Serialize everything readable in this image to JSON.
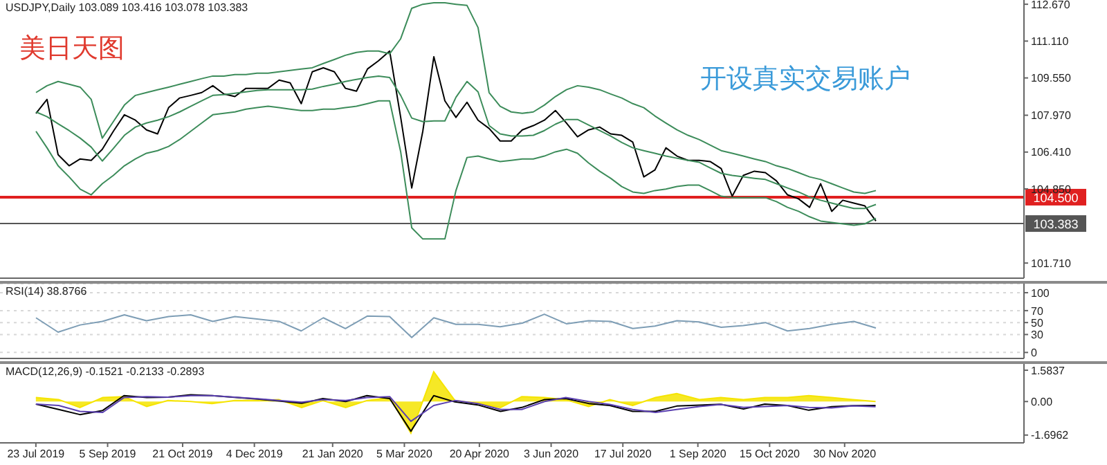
{
  "chart_data": [
    {
      "type": "line",
      "title": "USDJPY,Daily 103.089 103.416 103.078 103.383",
      "annotations": [
        "美日天图",
        "开设真实交易账户"
      ],
      "categories": [
        null,
        null,
        null,
        null,
        null,
        null,
        null,
        null,
        null,
        null,
        null,
        null,
        null,
        null,
        null,
        null,
        null,
        null,
        null,
        null,
        null,
        null,
        null,
        null,
        null,
        null,
        null,
        null,
        null,
        null,
        null,
        null,
        null,
        null,
        null,
        null,
        null,
        null,
        null,
        null,
        null,
        null,
        null,
        null,
        null,
        null,
        null,
        null,
        null,
        null,
        null,
        null,
        null,
        null,
        null,
        null,
        null,
        null,
        null,
        null,
        null,
        null,
        null,
        null,
        null,
        null,
        null,
        null,
        null,
        null,
        null,
        null,
        null,
        null,
        null,
        null,
        null
      ],
      "ylim": [
        101.07,
        112.85
      ],
      "yticks": [
        {
          "value": 101.71,
          "label": "101.710"
        },
        {
          "value": 104.85,
          "label": "104.850"
        },
        {
          "value": 106.41,
          "label": "106.410"
        },
        {
          "value": 107.97,
          "label": "107.970"
        },
        {
          "value": 109.55,
          "label": "109.550"
        },
        {
          "value": 111.11,
          "label": "111.110"
        },
        {
          "value": 112.67,
          "label": "112.670"
        }
      ],
      "tick_labels": "y",
      "ref_lines": [
        {
          "axis": "y",
          "value": 104.5,
          "label": "104.500",
          "color": "#e02020"
        },
        {
          "axis": "y",
          "value": 103.383,
          "label": "103.383",
          "color": "#555555"
        }
      ],
      "series": [
        {
          "color": "#000000",
          "values": [
            108.05,
            108.64,
            106.3,
            105.83,
            106.12,
            106.06,
            106.53,
            107.29,
            107.99,
            107.76,
            107.35,
            107.18,
            108.29,
            108.7,
            108.81,
            108.93,
            109.22,
            108.87,
            108.76,
            109.11,
            109.11,
            109.11,
            109.46,
            109.34,
            108.46,
            109.81,
            109.98,
            109.81,
            109.11,
            108.99,
            109.93,
            110.28,
            110.69,
            107.88,
            104.89,
            107.29,
            110.45,
            108.58,
            107.88,
            108.52,
            107.76,
            107.41,
            106.88,
            106.88,
            107.35,
            107.53,
            107.76,
            108.17,
            107.64,
            107.06,
            107.35,
            107.47,
            107.18,
            107.12,
            106.83,
            105.36,
            105.65,
            106.59,
            106.24,
            106.06,
            106.06,
            106.01,
            105.71,
            104.54,
            105.42,
            105.6,
            105.54,
            105.19,
            104.6,
            104.43,
            104.07,
            105.07,
            103.9,
            104.37,
            104.25,
            104.13,
            103.49
          ]
        },
        {
          "color": "#3c8c5a",
          "values": [
            108.93,
            109.22,
            109.4,
            109.28,
            109.16,
            108.64,
            107.0,
            107.7,
            108.4,
            108.81,
            108.93,
            109.05,
            109.16,
            109.28,
            109.4,
            109.52,
            109.63,
            109.63,
            109.69,
            109.69,
            109.75,
            109.75,
            109.81,
            109.87,
            109.93,
            109.98,
            110.16,
            110.33,
            110.51,
            110.63,
            110.69,
            110.69,
            110.57,
            111.21,
            112.5,
            112.67,
            112.73,
            112.73,
            112.67,
            112.62,
            111.68,
            108.93,
            108.35,
            108.11,
            108.05,
            108.11,
            108.4,
            108.76,
            109.05,
            109.22,
            109.16,
            109.05,
            108.87,
            108.7,
            108.46,
            108.29,
            107.94,
            107.64,
            107.35,
            107.12,
            106.94,
            106.71,
            106.47,
            106.36,
            106.24,
            106.12,
            106.01,
            105.83,
            105.71,
            105.54,
            105.36,
            105.25,
            105.07,
            104.89,
            104.72,
            104.66,
            104.78
          ]
        },
        {
          "color": "#3c8c5a",
          "values": [
            108.11,
            107.91,
            107.61,
            107.32,
            107.0,
            106.62,
            106.03,
            106.56,
            107.12,
            107.47,
            107.64,
            107.76,
            107.91,
            108.11,
            108.35,
            108.58,
            108.81,
            108.84,
            108.9,
            108.96,
            109.02,
            109.05,
            109.05,
            109.05,
            109.05,
            109.08,
            109.19,
            109.28,
            109.4,
            109.49,
            109.57,
            109.63,
            109.57,
            108.81,
            107.85,
            107.7,
            107.73,
            107.73,
            108.73,
            109.4,
            108.96,
            107.53,
            107.18,
            107.09,
            107.09,
            107.12,
            107.32,
            107.59,
            107.79,
            107.79,
            107.56,
            107.32,
            107.09,
            106.82,
            106.59,
            106.47,
            106.36,
            106.24,
            106.15,
            106.06,
            105.98,
            105.74,
            105.51,
            105.42,
            105.36,
            105.3,
            105.25,
            105.07,
            104.89,
            104.72,
            104.51,
            104.37,
            104.25,
            104.13,
            104.02,
            104.02,
            104.19
          ]
        },
        {
          "color": "#3c8c5a",
          "values": [
            107.29,
            106.59,
            105.83,
            105.36,
            104.84,
            104.6,
            105.07,
            105.42,
            105.83,
            106.12,
            106.36,
            106.47,
            106.65,
            106.94,
            107.29,
            107.64,
            107.99,
            108.05,
            108.11,
            108.23,
            108.29,
            108.35,
            108.29,
            108.23,
            108.17,
            108.17,
            108.23,
            108.23,
            108.29,
            108.35,
            108.46,
            108.58,
            108.58,
            106.42,
            103.2,
            102.73,
            102.73,
            102.73,
            104.78,
            106.18,
            106.24,
            106.12,
            106.01,
            106.06,
            106.12,
            106.12,
            106.24,
            106.42,
            106.53,
            106.36,
            105.95,
            105.6,
            105.3,
            104.95,
            104.72,
            104.66,
            104.78,
            104.84,
            104.95,
            105.01,
            105.01,
            104.78,
            104.54,
            104.48,
            104.48,
            104.48,
            104.48,
            104.31,
            104.07,
            103.9,
            103.67,
            103.49,
            103.43,
            103.37,
            103.31,
            103.37,
            103.61
          ]
        }
      ]
    },
    {
      "type": "line",
      "title": "RSI(14) 38.8766",
      "categories": [
        null,
        null,
        null,
        null,
        null,
        null,
        null,
        null,
        null,
        null,
        null,
        null,
        null,
        null,
        null,
        null,
        null,
        null,
        null,
        null,
        null,
        null,
        null,
        null,
        null,
        null,
        null,
        null,
        null,
        null,
        null,
        null,
        null,
        null,
        null,
        null,
        null,
        null,
        null
      ],
      "ylim": [
        -10,
        115
      ],
      "yticks": [
        0,
        30,
        50,
        70,
        100
      ],
      "tick_labels": "y",
      "grid": "y",
      "series": [
        {
          "color": "#7d9db5",
          "values": [
            58,
            34,
            46,
            52,
            63,
            53,
            60,
            63,
            52,
            60,
            56,
            52,
            36,
            58,
            40,
            61,
            60,
            25,
            58,
            47,
            47,
            43,
            49,
            64,
            48,
            53,
            52,
            40,
            44,
            53,
            51,
            42,
            45,
            50,
            36,
            40,
            47,
            52,
            41
          ]
        }
      ]
    },
    {
      "type": "line",
      "title": "MACD(12,26,9) -0.1521 -0.2133 -0.2893",
      "xlim": [
        "2019-07-01",
        "2021-03-20"
      ],
      "xticks": [
        {
          "value": "2019-07-23",
          "label": "23 Jul 2019"
        },
        {
          "value": "2019-09-05",
          "label": "5 Sep 2019"
        },
        {
          "value": "2019-10-21",
          "label": "21 Oct 2019"
        },
        {
          "value": "2019-12-04",
          "label": "4 Dec 2019"
        },
        {
          "value": "2020-01-21",
          "label": "21 Jan 2020"
        },
        {
          "value": "2020-03-05",
          "label": "5 Mar 2020"
        },
        {
          "value": "2020-04-20",
          "label": "20 Apr 2020"
        },
        {
          "value": "2020-06-03",
          "label": "3 Jun 2020"
        },
        {
          "value": "2020-07-17",
          "label": "17 Jul 2020"
        },
        {
          "value": "2020-09-01",
          "label": "1 Sep 2020"
        },
        {
          "value": "2020-10-15",
          "label": "15 Oct 2020"
        },
        {
          "value": "2020-11-30",
          "label": "30 Nov 2020"
        }
      ],
      "x": [
        "2019-07-23",
        "2019-08-06",
        "2019-08-19",
        "2019-09-02",
        "2019-09-15",
        "2019-09-29",
        "2019-10-12",
        "2019-10-26",
        "2019-11-08",
        "2019-11-22",
        "2019-12-06",
        "2019-12-19",
        "2020-01-02",
        "2020-01-15",
        "2020-01-29",
        "2020-02-11",
        "2020-02-25",
        "2020-03-09",
        "2020-03-23",
        "2020-04-05",
        "2020-04-19",
        "2020-05-03",
        "2020-05-16",
        "2020-05-30",
        "2020-06-12",
        "2020-06-26",
        "2020-07-09",
        "2020-07-23",
        "2020-08-06",
        "2020-08-19",
        "2020-09-02",
        "2020-09-15",
        "2020-09-29",
        "2020-10-12",
        "2020-10-26",
        "2020-11-08",
        "2020-11-22",
        "2020-12-05",
        "2020-12-19"
      ],
      "ylim": [
        -2.09,
        1.9
      ],
      "yticks": [
        -1.6962,
        {
          "value": 0,
          "label": "0.00"
        },
        1.5837
      ],
      "series": [
        {
          "type": "area",
          "color": "#f5e400",
          "values": [
            0.2,
            0.1,
            -0.3,
            0.2,
            0.25,
            -0.25,
            0.05,
            0.0,
            -0.1,
            0.05,
            0.05,
            0.1,
            -0.3,
            0.05,
            -0.3,
            0.05,
            0.2,
            -1.6,
            1.5,
            0.05,
            -0.1,
            -0.3,
            0.25,
            0.2,
            0.1,
            -0.25,
            0.1,
            -0.2,
            0.2,
            0.4,
            0.1,
            0.2,
            0.1,
            0.2,
            0.2,
            0.3,
            0.2,
            0.1,
            0.0
          ]
        },
        {
          "color": "#000000",
          "values": [
            -0.13,
            -0.4,
            -0.66,
            -0.45,
            0.3,
            0.2,
            0.22,
            0.34,
            0.3,
            0.21,
            0.12,
            0.03,
            -0.09,
            0.15,
            0.0,
            0.3,
            0.15,
            -1.5,
            0.3,
            -0.02,
            -0.17,
            -0.5,
            -0.3,
            0.1,
            0.15,
            -0.1,
            -0.2,
            -0.5,
            -0.5,
            -0.23,
            -0.18,
            -0.14,
            -0.38,
            -0.13,
            -0.2,
            -0.44,
            -0.26,
            -0.21,
            -0.2
          ]
        },
        {
          "color": "#5a3fb0",
          "values": [
            -0.13,
            -0.2,
            -0.5,
            -0.55,
            0.2,
            0.25,
            0.22,
            0.3,
            0.3,
            0.22,
            0.14,
            0.05,
            -0.03,
            0.1,
            0.05,
            0.2,
            0.25,
            -1.0,
            -0.2,
            0.05,
            -0.1,
            -0.4,
            -0.4,
            0.0,
            0.2,
            0.0,
            -0.15,
            -0.4,
            -0.55,
            -0.4,
            -0.25,
            -0.15,
            -0.3,
            -0.25,
            -0.2,
            -0.3,
            -0.32,
            -0.22,
            -0.26
          ]
        }
      ]
    }
  ]
}
